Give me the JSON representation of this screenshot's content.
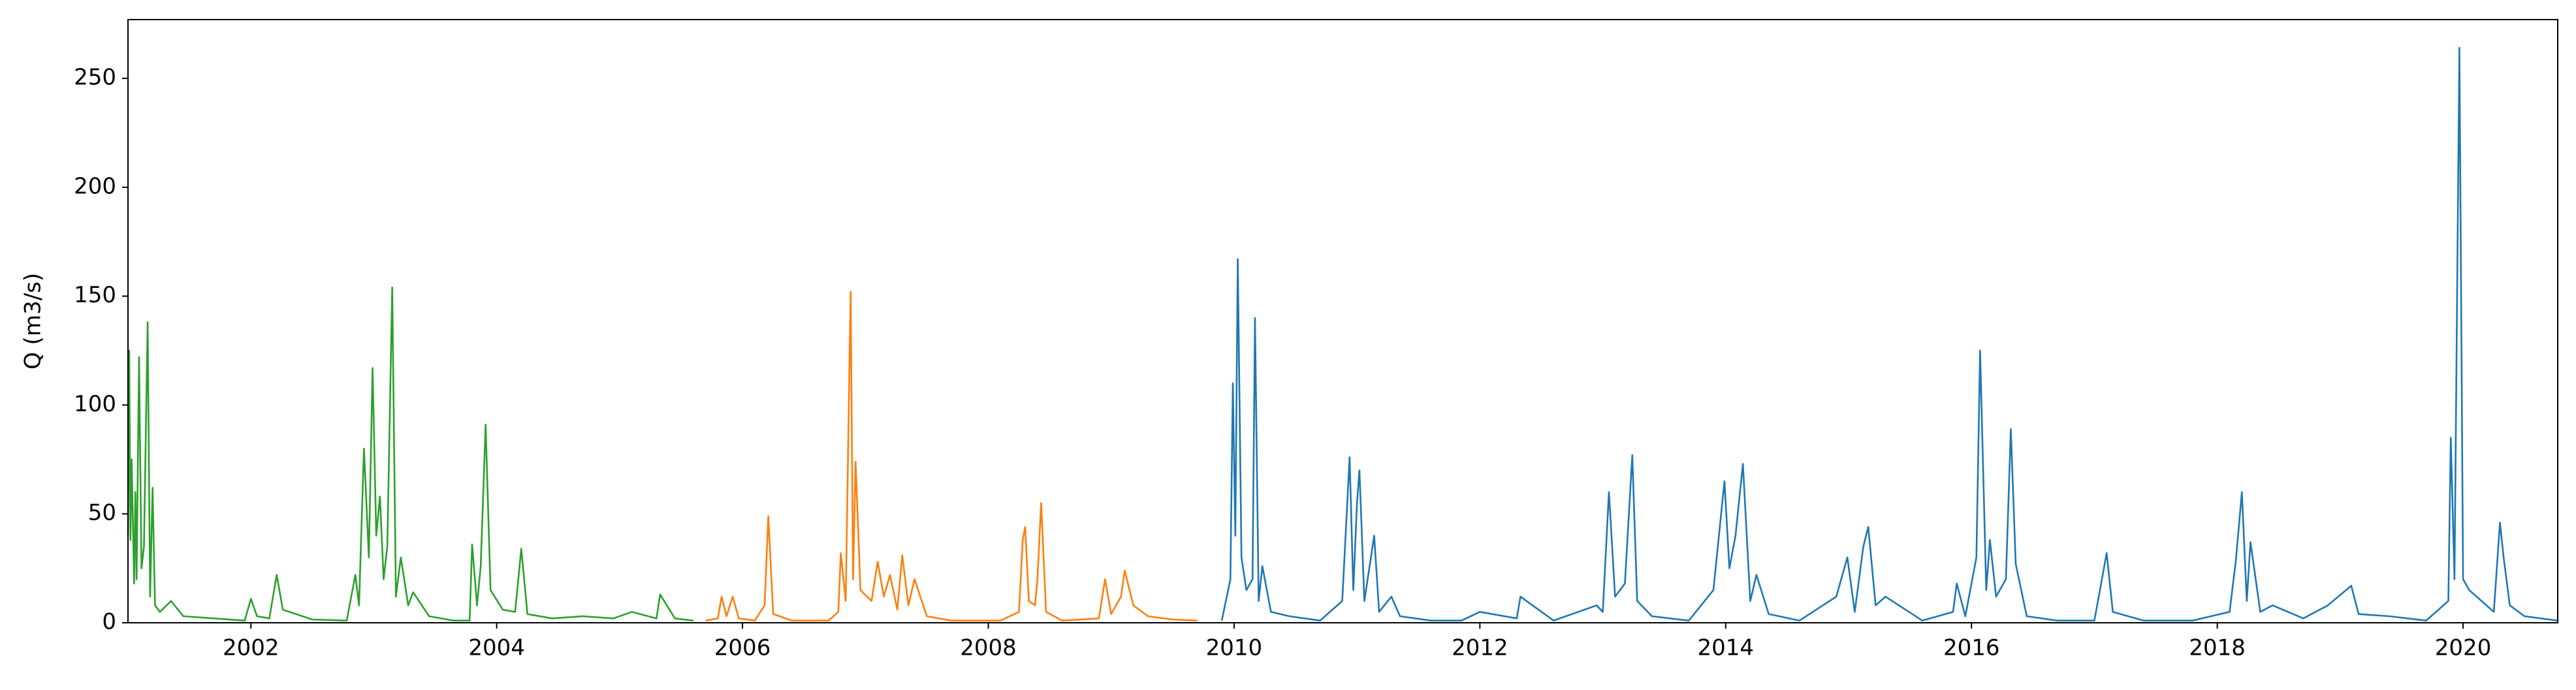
{
  "chart_data": {
    "type": "line",
    "ylabel": "Q (m3/s)",
    "xlim": [
      2001.0,
      2020.77
    ],
    "xticks": [
      2002,
      2004,
      2006,
      2008,
      2010,
      2012,
      2014,
      2016,
      2018,
      2020
    ],
    "ylim": [
      0,
      277
    ],
    "yticks": [
      0,
      50,
      100,
      150,
      200,
      250
    ],
    "grid": false,
    "series": [
      {
        "color": "#2ca02c",
        "x": [
          2001.0,
          2001.01,
          2001.02,
          2001.03,
          2001.05,
          2001.06,
          2001.07,
          2001.09,
          2001.11,
          2001.13,
          2001.16,
          2001.18,
          2001.2,
          2001.22,
          2001.26,
          2001.35,
          2001.45,
          2001.7,
          2001.95,
          2002.0,
          2002.05,
          2002.15,
          2002.21,
          2002.26,
          2002.5,
          2002.78,
          2002.85,
          2002.88,
          2002.92,
          2002.96,
          2002.99,
          2003.02,
          2003.05,
          2003.08,
          2003.11,
          2003.15,
          2003.18,
          2003.22,
          2003.28,
          2003.32,
          2003.45,
          2003.65,
          2003.78,
          2003.8,
          2003.84,
          2003.87,
          2003.91,
          2003.95,
          2004.05,
          2004.15,
          2004.2,
          2004.25,
          2004.45,
          2004.7,
          2004.95,
          2005.1,
          2005.3,
          2005.33,
          2005.45,
          2005.6
        ],
        "values": [
          40,
          125,
          38,
          75,
          18,
          60,
          20,
          122,
          25,
          35,
          138,
          12,
          62,
          8,
          5,
          10,
          3,
          2,
          1,
          11,
          3,
          2,
          22,
          6,
          1.5,
          1,
          22,
          8,
          80,
          30,
          117,
          40,
          58,
          20,
          35,
          154,
          12,
          30,
          8,
          14,
          3,
          1,
          1,
          36,
          8,
          26,
          91,
          15,
          6,
          5,
          34,
          4,
          2,
          3,
          2,
          5,
          2,
          13,
          2,
          1
        ]
      },
      {
        "color": "#ff7f0e",
        "x": [
          2005.7,
          2005.8,
          2005.83,
          2005.87,
          2005.92,
          2005.97,
          2006.1,
          2006.18,
          2006.21,
          2006.25,
          2006.4,
          2006.7,
          2006.78,
          2006.8,
          2006.84,
          2006.88,
          2006.9,
          2006.92,
          2006.96,
          2007.05,
          2007.1,
          2007.15,
          2007.2,
          2007.26,
          2007.3,
          2007.35,
          2007.4,
          2007.5,
          2007.7,
          2007.9,
          2008.1,
          2008.25,
          2008.28,
          2008.3,
          2008.33,
          2008.38,
          2008.4,
          2008.43,
          2008.47,
          2008.6,
          2008.9,
          2008.95,
          2009.0,
          2009.08,
          2009.11,
          2009.18,
          2009.3,
          2009.5,
          2009.7
        ],
        "values": [
          1,
          2,
          12,
          3,
          12,
          2,
          1,
          8,
          49,
          4,
          1,
          1,
          5,
          32,
          10,
          152,
          20,
          74,
          15,
          10,
          28,
          12,
          22,
          6,
          31,
          8,
          20,
          3,
          1,
          1,
          1,
          5,
          38,
          44,
          10,
          8,
          20,
          55,
          5,
          1,
          2,
          20,
          4,
          12,
          24,
          8,
          3,
          1.5,
          1
        ]
      },
      {
        "color": "#1f77b4",
        "x": [
          2009.9,
          2009.97,
          2009.99,
          2010.01,
          2010.03,
          2010.06,
          2010.1,
          2010.15,
          2010.17,
          2010.2,
          2010.23,
          2010.3,
          2010.45,
          2010.7,
          2010.88,
          2010.94,
          2010.97,
          2011.0,
          2011.02,
          2011.06,
          2011.14,
          2011.18,
          2011.28,
          2011.35,
          2011.6,
          2011.85,
          2012.0,
          2012.3,
          2012.33,
          2012.6,
          2012.95,
          2013.0,
          2013.05,
          2013.1,
          2013.18,
          2013.24,
          2013.28,
          2013.4,
          2013.7,
          2013.9,
          2013.99,
          2014.03,
          2014.08,
          2014.14,
          2014.2,
          2014.25,
          2014.35,
          2014.6,
          2014.9,
          2014.99,
          2015.05,
          2015.12,
          2015.16,
          2015.22,
          2015.3,
          2015.6,
          2015.85,
          2015.88,
          2015.95,
          2016.04,
          2016.07,
          2016.12,
          2016.15,
          2016.2,
          2016.28,
          2016.32,
          2016.36,
          2016.45,
          2016.7,
          2017.0,
          2017.1,
          2017.15,
          2017.4,
          2017.8,
          2018.1,
          2018.15,
          2018.18,
          2018.2,
          2018.24,
          2018.27,
          2018.35,
          2018.45,
          2018.7,
          2018.9,
          2019.09,
          2019.15,
          2019.4,
          2019.7,
          2019.88,
          2019.9,
          2019.93,
          2019.97,
          2020.0,
          2020.05,
          2020.15,
          2020.25,
          2020.3,
          2020.33,
          2020.38,
          2020.5,
          2020.77
        ],
        "values": [
          1,
          20,
          110,
          40,
          167,
          30,
          15,
          20,
          140,
          10,
          26,
          5,
          3,
          1,
          10,
          76,
          15,
          55,
          70,
          10,
          40,
          5,
          12,
          3,
          1,
          1,
          5,
          2,
          12,
          1,
          8,
          5,
          60,
          12,
          18,
          77,
          10,
          3,
          1,
          15,
          65,
          25,
          40,
          73,
          10,
          22,
          4,
          1,
          12,
          30,
          5,
          35,
          44,
          8,
          12,
          1,
          5,
          18,
          3,
          30,
          125,
          15,
          38,
          12,
          20,
          89,
          27,
          3,
          1,
          1,
          32,
          5,
          1,
          1,
          5,
          28,
          47,
          60,
          10,
          37,
          5,
          8,
          2,
          8,
          17,
          4,
          3,
          1,
          10,
          85,
          20,
          264,
          20,
          15,
          10,
          5,
          46,
          30,
          8,
          3,
          1
        ]
      }
    ]
  }
}
